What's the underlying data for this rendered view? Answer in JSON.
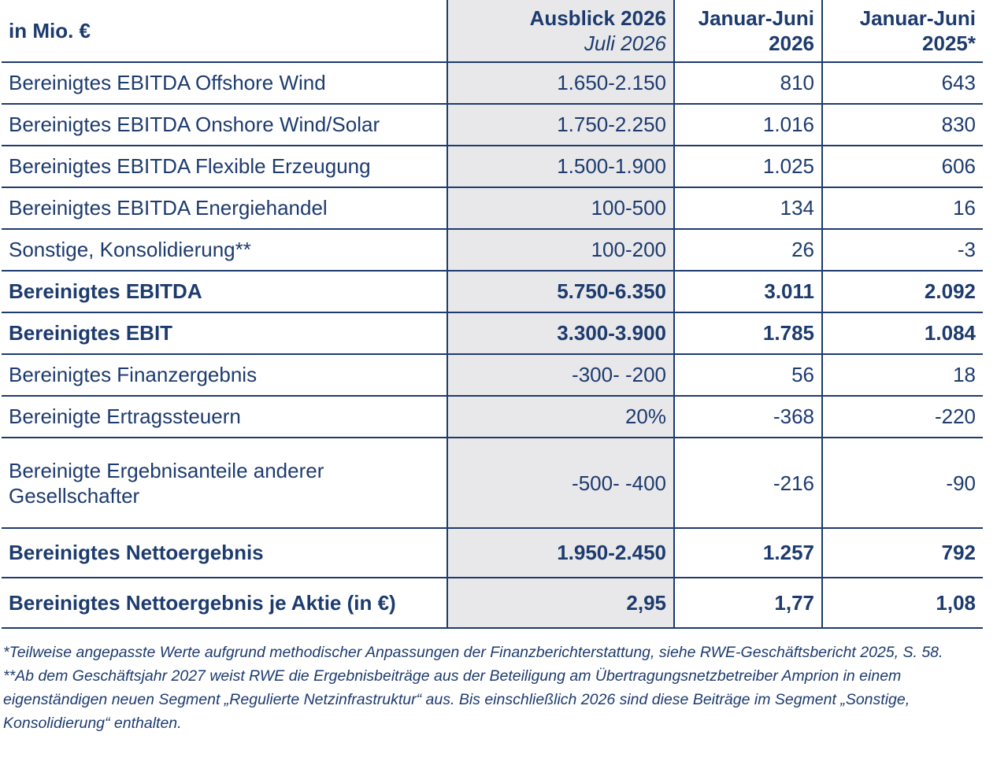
{
  "table": {
    "header": {
      "label": "in Mio. €",
      "col1_title": "Ausblick 2026",
      "col1_sub": "Juli 2026",
      "col2_line1": "Januar-Juni",
      "col2_line2": "2026",
      "col3_line1": "Januar-Juni",
      "col3_line2": "2025*"
    },
    "rows": [
      {
        "label": "Bereinigtes EBITDA Offshore Wind",
        "outlook": "1.650-2.150",
        "h1_2026": "810",
        "h1_2025": "643"
      },
      {
        "label": "Bereinigtes EBITDA Onshore Wind/Solar",
        "outlook": "1.750-2.250",
        "h1_2026": "1.016",
        "h1_2025": "830"
      },
      {
        "label": "Bereinigtes EBITDA Flexible Erzeugung",
        "outlook": "1.500-1.900",
        "h1_2026": "1.025",
        "h1_2025": "606"
      },
      {
        "label": "Bereinigtes EBITDA Energiehandel",
        "outlook": "100-500",
        "h1_2026": "134",
        "h1_2025": "16"
      },
      {
        "label": "Sonstige, Konsolidierung**",
        "outlook": "100-200",
        "h1_2026": "26",
        "h1_2025": "-3"
      },
      {
        "label": "Bereinigtes EBITDA",
        "outlook": "5.750-6.350",
        "h1_2026": "3.011",
        "h1_2025": "2.092"
      },
      {
        "label": "Bereinigtes EBIT",
        "outlook": "3.300-3.900",
        "h1_2026": "1.785",
        "h1_2025": "1.084"
      },
      {
        "label": "Bereinigtes Finanzergebnis",
        "outlook": "-300- -200",
        "h1_2026": "56",
        "h1_2025": "18"
      },
      {
        "label": "Bereinigte Ertragssteuern",
        "outlook": "20%",
        "h1_2026": "-368",
        "h1_2025": "-220"
      },
      {
        "label": "Bereinigte Ergebnisanteile anderer Gesellschafter",
        "outlook": "-500- -400",
        "h1_2026": "-216",
        "h1_2025": "-90"
      },
      {
        "label": "Bereinigtes Nettoergebnis",
        "outlook": "1.950-2.450",
        "h1_2026": "1.257",
        "h1_2025": "792"
      },
      {
        "label": "Bereinigtes Nettoergebnis je Aktie (in €)",
        "outlook": "2,95",
        "h1_2026": "1,77",
        "h1_2025": "1,08"
      }
    ]
  },
  "footnotes": {
    "note1": "*Teilweise angepasste Werte aufgrund methodischer Anpassungen der Finanzberichterstattung, siehe RWE-Geschäftsbericht 2025, S. 58.",
    "note2": "**Ab dem Geschäftsjahr 2027 weist RWE die Ergebnisbeiträge aus der Beteiligung am Übertragungsnetzbetreiber Amprion in einem eigenständigen neuen Segment „Regulierte Netzinfrastruktur“ aus. Bis einschließlich 2026 sind diese Beiträge im Segment „Sonstige, Konsolidierung“ enthalten."
  },
  "colors": {
    "text": "#1d3b6e",
    "shade": "#e8e8ea"
  }
}
